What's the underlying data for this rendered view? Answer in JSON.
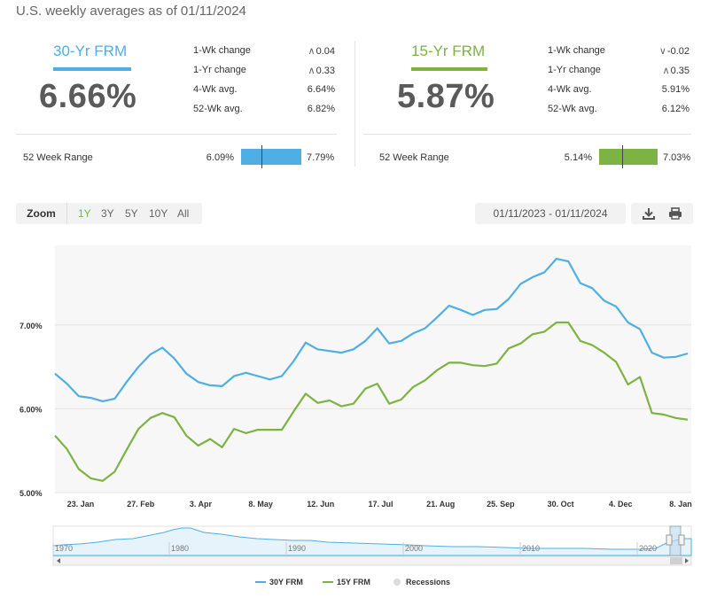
{
  "heading": "U.S. weekly averages as of 01/11/2024",
  "panels": [
    {
      "name": "30-Yr FRM",
      "color": "#4faee3",
      "value": "6.66%",
      "stats": [
        {
          "label": "1-Wk change",
          "direction": "up",
          "value": "0.04"
        },
        {
          "label": "1-Yr change",
          "direction": "up",
          "value": "0.33"
        },
        {
          "label": "4-Wk avg.",
          "direction": "",
          "value": "6.64%"
        },
        {
          "label": "52-Wk avg.",
          "direction": "",
          "value": "6.82%"
        }
      ],
      "range_label": "52 Week Range",
      "range_low": "6.09%",
      "range_high": "7.79%",
      "range_position": 0.34
    },
    {
      "name": "15-Yr FRM",
      "color": "#7cb342",
      "value": "5.87%",
      "stats": [
        {
          "label": "1-Wk change",
          "direction": "down",
          "value": "-0.02"
        },
        {
          "label": "1-Yr change",
          "direction": "up",
          "value": "0.35"
        },
        {
          "label": "4-Wk avg.",
          "direction": "",
          "value": "5.91%"
        },
        {
          "label": "52-Wk avg.",
          "direction": "",
          "value": "6.12%"
        }
      ],
      "range_label": "52 Week Range",
      "range_low": "5.14%",
      "range_high": "7.03%",
      "range_position": 0.39
    }
  ],
  "toolbar": {
    "zoom_label": "Zoom",
    "zoom_options": [
      "1Y",
      "3Y",
      "5Y",
      "10Y",
      "All"
    ],
    "zoom_active": "1Y",
    "date_range": "01/11/2023 - 01/11/2024",
    "download_icon": "download-icon",
    "print_icon": "print-icon"
  },
  "chart_data": {
    "type": "line",
    "x_tick_labels": [
      "23. Jan",
      "27. Feb",
      "3. Apr",
      "8. May",
      "12. Jun",
      "17. Jul",
      "21. Aug",
      "25. Sep",
      "30. Oct",
      "4. Dec",
      "8. Jan"
    ],
    "y_tick_labels": [
      "5.00%",
      "6.00%",
      "7.00%"
    ],
    "ylim": [
      5.0,
      7.95
    ],
    "grid": "horizontal",
    "series": [
      {
        "name": "30Y FRM",
        "color": "#4faee3",
        "values": [
          6.42,
          6.3,
          6.15,
          6.13,
          6.09,
          6.12,
          6.32,
          6.5,
          6.65,
          6.73,
          6.6,
          6.42,
          6.32,
          6.28,
          6.27,
          6.39,
          6.43,
          6.39,
          6.35,
          6.39,
          6.57,
          6.79,
          6.71,
          6.69,
          6.67,
          6.71,
          6.81,
          6.96,
          6.78,
          6.81,
          6.9,
          6.96,
          7.09,
          7.23,
          7.18,
          7.12,
          7.18,
          7.19,
          7.31,
          7.49,
          7.57,
          7.63,
          7.79,
          7.76,
          7.5,
          7.44,
          7.29,
          7.22,
          7.03,
          6.95,
          6.67,
          6.61,
          6.62,
          6.66
        ]
      },
      {
        "name": "15Y FRM",
        "color": "#7cb342",
        "values": [
          5.68,
          5.52,
          5.28,
          5.17,
          5.14,
          5.25,
          5.51,
          5.76,
          5.89,
          5.95,
          5.9,
          5.68,
          5.56,
          5.64,
          5.54,
          5.76,
          5.71,
          5.75,
          5.75,
          5.75,
          5.97,
          6.18,
          6.07,
          6.1,
          6.03,
          6.06,
          6.24,
          6.3,
          6.06,
          6.11,
          6.26,
          6.34,
          6.46,
          6.55,
          6.55,
          6.52,
          6.51,
          6.54,
          6.72,
          6.78,
          6.89,
          6.92,
          7.03,
          7.03,
          6.81,
          6.76,
          6.67,
          6.56,
          6.29,
          6.38,
          5.95,
          5.93,
          5.89,
          5.87
        ]
      }
    ],
    "navigator": {
      "x_tick_labels": [
        "1970",
        "1980",
        "1990",
        "2000",
        "2010",
        "2020"
      ]
    },
    "legend": {
      "position": "bottom-center",
      "items": [
        {
          "label": "30Y FRM",
          "color": "#4faee3",
          "kind": "line"
        },
        {
          "label": "15Y FRM",
          "color": "#7cb342",
          "kind": "line"
        },
        {
          "label": "Recessions",
          "color": "#dcdcdc",
          "kind": "dot"
        }
      ]
    }
  }
}
